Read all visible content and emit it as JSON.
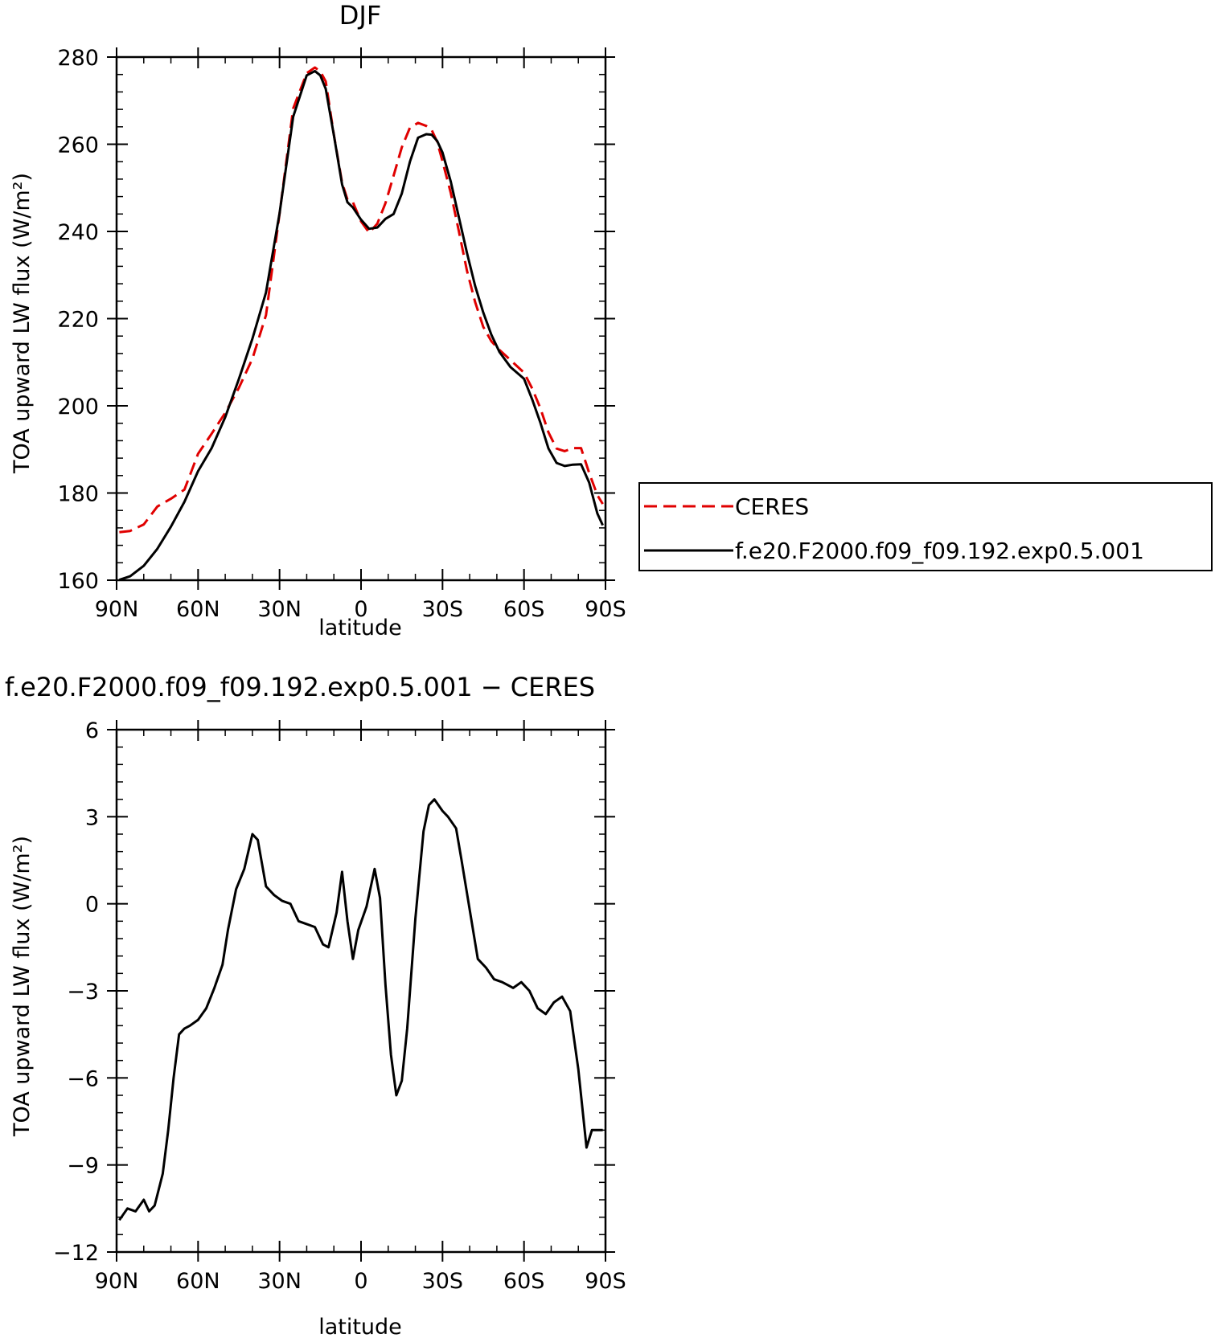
{
  "chart_data": [
    {
      "type": "line",
      "title": "DJF",
      "xlabel": "latitude",
      "ylabel": "TOA upward LW flux (W/m²)",
      "x_ticks": [
        {
          "value": 90,
          "label": "90N"
        },
        {
          "value": 60,
          "label": "60N"
        },
        {
          "value": 30,
          "label": "30N"
        },
        {
          "value": 0,
          "label": "0"
        },
        {
          "value": -30,
          "label": "30S"
        },
        {
          "value": -60,
          "label": "60S"
        },
        {
          "value": -90,
          "label": "90S"
        }
      ],
      "xlim": [
        90,
        -90
      ],
      "ylim": [
        160,
        280
      ],
      "y_ticks": [
        160,
        180,
        200,
        220,
        240,
        260,
        280
      ],
      "grid": false,
      "legend_position": "right",
      "series": [
        {
          "name": "CERES",
          "color": "#e00000",
          "dash": "dashed",
          "x": [
            89,
            85,
            80,
            75,
            70,
            65,
            60,
            55,
            50,
            45,
            40,
            35,
            30,
            25,
            20,
            17,
            15,
            13,
            10,
            7,
            5,
            3,
            0,
            -3,
            -6,
            -9,
            -12,
            -15,
            -18,
            -21,
            -24,
            -26,
            -28,
            -30,
            -33,
            -36,
            -39,
            -42,
            -45,
            -48,
            -51,
            -55,
            -60,
            -63,
            -66,
            -69,
            -72,
            -75,
            -78,
            -81,
            -84,
            -87,
            -89
          ],
          "y": [
            171,
            171.3,
            172.8,
            176.9,
            178.7,
            180.8,
            189,
            193.6,
            198.4,
            204.1,
            210.8,
            220.8,
            244.1,
            268.2,
            276.3,
            277.6,
            276.7,
            274.4,
            262.2,
            251.2,
            247.3,
            246.7,
            242.3,
            239.7,
            241.8,
            246.5,
            252.8,
            259.3,
            263.8,
            264.9,
            264.2,
            263.3,
            260.6,
            256.1,
            248.9,
            240.1,
            231,
            223.8,
            218.1,
            214.8,
            212.8,
            210.5,
            207.6,
            204,
            199.5,
            193.9,
            190.2,
            189.6,
            190.3,
            190.3,
            184.6,
            179.5,
            177.5
          ]
        },
        {
          "name": "f.e20.F2000.f09_f09.192.exp0.5.001",
          "color": "#000000",
          "dash": "solid",
          "x": [
            89,
            85,
            80,
            75,
            70,
            65,
            60,
            55,
            50,
            45,
            40,
            35,
            30,
            25,
            20,
            17,
            15,
            13,
            10,
            7,
            5,
            3,
            0,
            -3,
            -6,
            -9,
            -12,
            -15,
            -18,
            -21,
            -24,
            -26,
            -28,
            -30,
            -33,
            -36,
            -39,
            -42,
            -45,
            -48,
            -51,
            -55,
            -60,
            -63,
            -66,
            -69,
            -72,
            -75,
            -78,
            -81,
            -84,
            -87,
            -89
          ],
          "y": [
            160.1,
            160.9,
            163.3,
            167.2,
            172.3,
            178,
            185,
            190.3,
            197.4,
            206.1,
            215.4,
            226,
            244.2,
            266.3,
            275.8,
            276.8,
            275.8,
            272.7,
            262.1,
            250.8,
            246.7,
            245.5,
            242.7,
            240.6,
            240.9,
            242.9,
            244,
            248.7,
            256,
            261.5,
            262.3,
            262.2,
            260.8,
            258.1,
            251.5,
            243.3,
            235.1,
            227.5,
            221.4,
            216.3,
            212.3,
            208.9,
            206.2,
            201.5,
            196.2,
            190.2,
            186.9,
            186.2,
            186.5,
            186.6,
            182.4,
            175.3,
            172.6
          ]
        }
      ]
    },
    {
      "type": "line",
      "title": "f.e20.F2000.f09_f09.192.exp0.5.001 − CERES",
      "xlabel": "latitude",
      "ylabel": "TOA upward LW flux (W/m²)",
      "x_ticks": [
        {
          "value": 90,
          "label": "90N"
        },
        {
          "value": 60,
          "label": "60N"
        },
        {
          "value": 30,
          "label": "30N"
        },
        {
          "value": 0,
          "label": "0"
        },
        {
          "value": -30,
          "label": "30S"
        },
        {
          "value": -60,
          "label": "60S"
        },
        {
          "value": -90,
          "label": "90S"
        }
      ],
      "xlim": [
        90,
        -90
      ],
      "ylim": [
        -12,
        6
      ],
      "y_ticks": [
        -12,
        -9,
        -6,
        -3,
        0,
        3,
        6
      ],
      "y_tick_labels": [
        "−12",
        "−9",
        "−6",
        "−3",
        "0",
        "3",
        "6"
      ],
      "grid": false,
      "series": [
        {
          "color": "#000000",
          "dash": "solid",
          "x": [
            89,
            86,
            83,
            80,
            78,
            76,
            73,
            71,
            69,
            67,
            65,
            63,
            60,
            57,
            54,
            51,
            49,
            46,
            43,
            40,
            38,
            35,
            32,
            29,
            26,
            23,
            20,
            17,
            14,
            12,
            9,
            7,
            5,
            3,
            1,
            -2,
            -5,
            -7,
            -9,
            -11,
            -13,
            -15,
            -17,
            -20,
            -23,
            -25,
            -27,
            -30,
            -32,
            -35,
            -37,
            -40,
            -43,
            -46,
            -49,
            -52,
            -56,
            -59,
            -62,
            -65,
            -68,
            -71,
            -74,
            -77,
            -80,
            -83,
            -85,
            -87,
            -89
          ],
          "y": [
            -10.9,
            -10.5,
            -10.6,
            -10.2,
            -10.6,
            -10.4,
            -9.3,
            -7.8,
            -6.0,
            -4.5,
            -4.3,
            -4.2,
            -4.0,
            -3.6,
            -2.9,
            -2.1,
            -0.9,
            0.5,
            1.2,
            2.4,
            2.2,
            0.6,
            0.3,
            0.1,
            0.0,
            -0.6,
            -0.7,
            -0.8,
            -1.4,
            -1.5,
            -0.3,
            1.1,
            -0.6,
            -1.9,
            -0.9,
            -0.1,
            1.2,
            0.2,
            -2.8,
            -5.2,
            -6.6,
            -6.1,
            -4.3,
            -0.5,
            2.5,
            3.4,
            3.6,
            3.2,
            3.0,
            2.6,
            1.5,
            -0.2,
            -1.9,
            -2.2,
            -2.6,
            -2.7,
            -2.9,
            -2.7,
            -3.0,
            -3.6,
            -3.8,
            -3.4,
            -3.2,
            -3.7,
            -5.7,
            -8.4,
            -7.8,
            -7.8,
            -7.8
          ]
        }
      ]
    }
  ]
}
